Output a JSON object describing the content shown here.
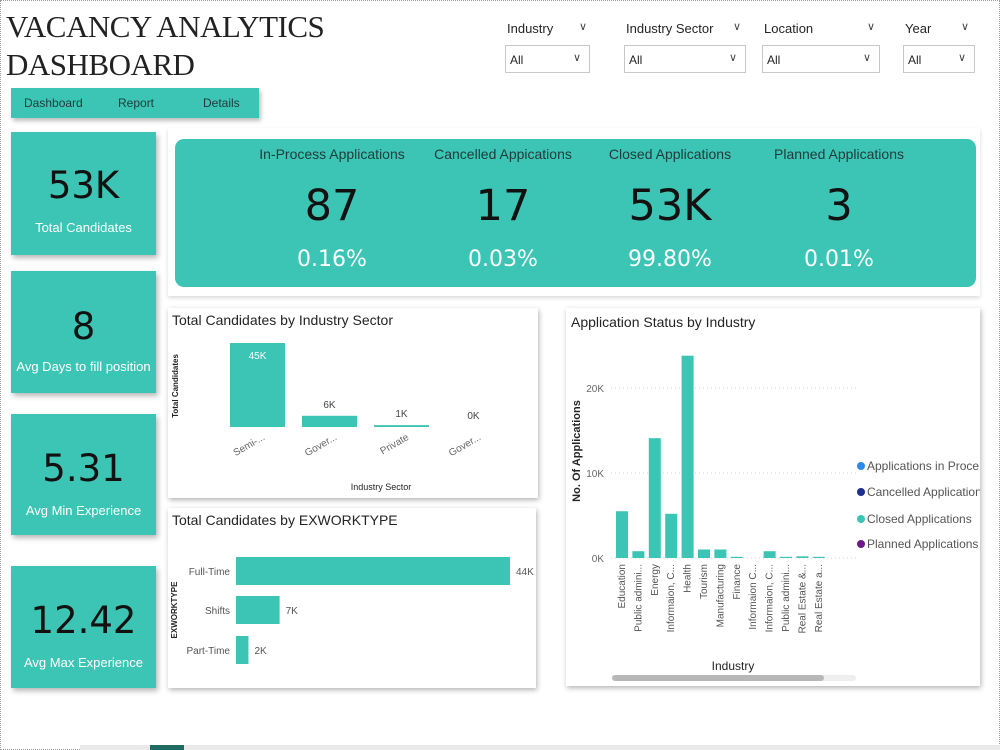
{
  "title": {
    "line1": "VACANCY ANALYTICS",
    "line2": "DASHBOARD"
  },
  "filters": [
    {
      "label": "Industry",
      "value": "All"
    },
    {
      "label": "Industry Sector",
      "value": "All"
    },
    {
      "label": "Location",
      "value": "All"
    },
    {
      "label": "Year",
      "value": "All"
    }
  ],
  "nav": {
    "dashboard": "Dashboard",
    "report": "Report",
    "details": "Details"
  },
  "cards": [
    {
      "value": "53K",
      "label": "Total Candidates"
    },
    {
      "value": "8",
      "label": "Avg Days to fill position"
    },
    {
      "value": "5.31",
      "label": "Avg Min Experience"
    },
    {
      "value": "12.42",
      "label": "Avg Max Experience"
    }
  ],
  "kpis": [
    {
      "title": "In-Process Applications",
      "value": "87",
      "pct": "0.16%"
    },
    {
      "title": "Cancelled Appications",
      "value": "17",
      "pct": "0.03%"
    },
    {
      "title": "Closed Applications",
      "value": "53K",
      "pct": "99.80%"
    },
    {
      "title": "Planned Applications",
      "value": "3",
      "pct": "0.01%"
    }
  ],
  "colors": {
    "accent": "#3cc5b4",
    "in_process": "#2b8be6",
    "cancelled": "#1b2f8f",
    "closed": "#3cc5b4",
    "planned": "#6b1a8a"
  },
  "chart_data": [
    {
      "type": "bar",
      "title": "Total Candidates by Industry Sector",
      "xlabel": "Industry Sector",
      "ylabel": "Total Candidates",
      "categories": [
        "Semi-...",
        "Gover...",
        "Private",
        "Gover..."
      ],
      "values": [
        45000,
        6000,
        1000,
        0
      ],
      "data_labels": [
        "45K",
        "6K",
        "1K",
        "0K"
      ],
      "ylim": [
        0,
        45000
      ]
    },
    {
      "type": "bar",
      "orientation": "horizontal",
      "title": "Total Candidates by EXWORKTYPE",
      "ylabel": "EXWORKTYPE",
      "categories": [
        "Full-Time",
        "Shifts",
        "Part-Time"
      ],
      "values": [
        44000,
        7000,
        2000
      ],
      "data_labels": [
        "44K",
        "7K",
        "2K"
      ],
      "xlim": [
        0,
        44000
      ]
    },
    {
      "type": "bar",
      "title": "Application Status by Industry",
      "xlabel": "Industry",
      "ylabel": "No. Of Applications",
      "categories": [
        "Education",
        "Public admini...",
        "Energy",
        "Informaion, C...",
        "Health",
        "Tourism",
        "Manufacturing",
        "Finance",
        "Informaion C...",
        "Informaion, C...",
        "Public admini...",
        "Real Estate &...",
        "Real Estate a..."
      ],
      "series": [
        {
          "name": "Applications in Proce...",
          "values": [
            0,
            0,
            0,
            0,
            0,
            0,
            0,
            0,
            0,
            0,
            0,
            0,
            0
          ]
        },
        {
          "name": "Cancelled Applications",
          "values": [
            0,
            0,
            0,
            0,
            0,
            0,
            0,
            0,
            0,
            0,
            0,
            0,
            0
          ]
        },
        {
          "name": "Closed Applications",
          "values": [
            5500,
            800,
            14100,
            5200,
            23800,
            1000,
            1000,
            100,
            0,
            800,
            100,
            200,
            100
          ]
        },
        {
          "name": "Planned Applications",
          "values": [
            0,
            0,
            0,
            0,
            0,
            0,
            0,
            0,
            0,
            0,
            0,
            0,
            0
          ]
        }
      ],
      "yticks": [
        "0K",
        "10K",
        "20K"
      ],
      "ylim": [
        0,
        24000
      ],
      "grid": true,
      "legend": "right"
    }
  ]
}
